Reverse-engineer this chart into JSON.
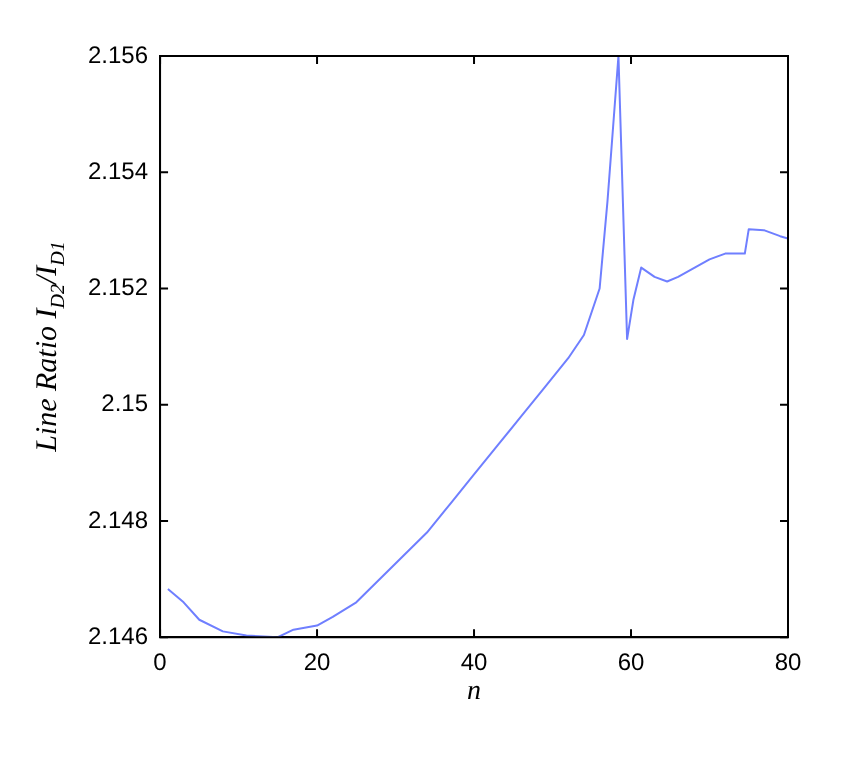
{
  "chart_data": {
    "type": "line",
    "xlabel": "n",
    "ylabel": "Line Ratio I$_{D2}$/I$_{D1}$",
    "x": [
      1,
      3,
      5,
      8,
      11,
      15,
      17,
      20,
      22,
      25,
      28,
      31,
      34,
      37,
      40,
      43,
      46,
      49,
      52,
      54,
      56,
      57,
      58.4,
      59.5,
      60.3,
      61.3,
      63,
      64.6,
      66,
      68,
      70,
      72,
      74.5,
      75,
      77,
      79,
      80
    ],
    "series": [
      {
        "color": "#6f7fff",
        "values": [
          2.14683,
          2.1466,
          2.1463,
          2.1461,
          2.14603,
          2.146,
          2.14613,
          2.1462,
          2.14635,
          2.1466,
          2.147,
          2.1474,
          2.1478,
          2.1483,
          2.1488,
          2.1493,
          2.1498,
          2.1503,
          2.1508,
          2.1512,
          2.152,
          2.1535,
          2.156,
          2.15113,
          2.1518,
          2.15236,
          2.1522,
          2.15212,
          2.1522,
          2.15235,
          2.1525,
          2.1526,
          2.1526,
          2.15302,
          2.153,
          2.1529,
          2.15286
        ]
      }
    ],
    "xlim": [
      0,
      80
    ],
    "xticks": [
      0,
      20,
      40,
      60,
      80
    ],
    "ylim": [
      2.146,
      2.156
    ],
    "yticks": [
      2.146,
      2.148,
      2.15,
      2.152,
      2.154,
      2.156
    ],
    "grid": false,
    "legend": false,
    "marker": "none",
    "line_style": "solid"
  }
}
